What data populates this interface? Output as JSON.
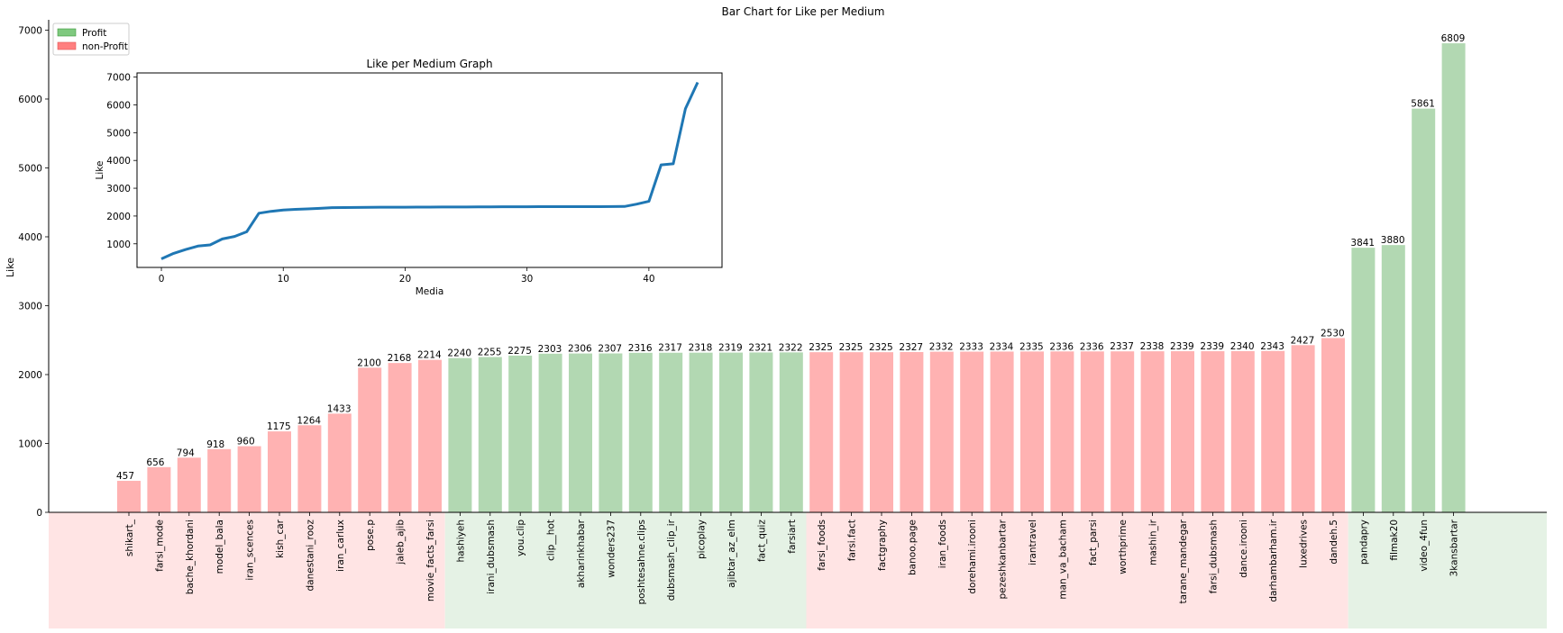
{
  "chart_data": [
    {
      "type": "bar",
      "title": "Bar Chart for Like per Medium",
      "xlabel": "",
      "ylabel": "Like",
      "ylim": [
        0,
        7150
      ],
      "yticks": [
        0,
        1000,
        2000,
        3000,
        4000,
        5000,
        6000,
        7000
      ],
      "legend": {
        "placement": "top-left",
        "entries": [
          {
            "label": "Profit",
            "color": "#7fc97f"
          },
          {
            "label": "non-Profit",
            "color": "#ff7f7f"
          }
        ]
      },
      "colors": {
        "profit_bar": "#b2d8b2",
        "nonprofit_bar": "#ffb2b2",
        "profit_band": "#e5f2e5",
        "nonprofit_band": "#ffe4e4"
      },
      "categories": [
        "shikart_",
        "farsi_mode",
        "bache_khordani",
        "model_bala",
        "iran_scences",
        "kish_car",
        "danestani_rooz",
        "iran_carlux",
        "pose.p",
        "jaleb_ajib",
        "movie_facts_farsi",
        "hashiyeh",
        "irani_dubsmash",
        "you.clip",
        "clip__hot",
        "akharinkhabar",
        "wonders237",
        "poshtesahne.clips",
        "dubsmash_clip_ir",
        "picoplay",
        "ajibtar_az_elm",
        "fact_quiz",
        "farsiart",
        "farsi_foods",
        "farsi.fact",
        "factgraphy",
        "banoo.page",
        "iran_foods",
        "dorehami.irooni",
        "pezeshkanbartar",
        "irantravel",
        "man_va_bacham",
        "fact_parsi",
        "worthprime",
        "mashin_ir",
        "tarane_mandegar",
        "farsi_dubsmash",
        "dance.irooni",
        "darhambarham.ir",
        "luxedrives",
        "dandeh.5",
        "pandapry",
        "filmak20",
        "video_4fun",
        "3kansbartar"
      ],
      "values": [
        457,
        656,
        794,
        918,
        960,
        1175,
        1264,
        1433,
        2100,
        2168,
        2214,
        2240,
        2255,
        2275,
        2303,
        2306,
        2307,
        2316,
        2317,
        2318,
        2319,
        2321,
        2322,
        2325,
        2325,
        2325,
        2327,
        2332,
        2333,
        2334,
        2335,
        2336,
        2336,
        2337,
        2338,
        2339,
        2339,
        2340,
        2343,
        2427,
        2530,
        3841,
        3880,
        5861,
        6809
      ],
      "profit": [
        false,
        false,
        false,
        false,
        false,
        false,
        false,
        false,
        false,
        false,
        false,
        true,
        true,
        true,
        true,
        true,
        true,
        true,
        true,
        true,
        true,
        true,
        true,
        false,
        false,
        false,
        false,
        false,
        false,
        false,
        false,
        false,
        false,
        false,
        false,
        false,
        false,
        false,
        false,
        false,
        false,
        true,
        true,
        true,
        true
      ],
      "data_labels": [
        "457",
        "656",
        "794",
        "918",
        "960",
        "1175",
        "1264",
        "1433",
        "2100",
        "2168",
        "2214",
        "2240",
        "2255",
        "2275",
        "2303",
        "2306",
        "2307",
        "2316",
        "2317",
        "2318",
        "2319",
        "2321",
        "2322",
        "2325",
        "2325",
        "2325",
        "2327",
        "2332",
        "2333",
        "2334",
        "2335",
        "2336",
        "2336",
        "2337",
        "2338",
        "2339",
        "2339",
        "2340",
        "2343",
        "2427",
        "2530",
        "3841",
        "3880",
        "5861",
        "6809"
      ]
    },
    {
      "type": "line",
      "title": "Like per Medium Graph",
      "xlabel": "Media",
      "ylabel": "Like",
      "xlim": [
        -2,
        46
      ],
      "ylim": [
        150,
        7150
      ],
      "xticks": [
        0,
        10,
        20,
        30,
        40
      ],
      "yticks": [
        1000,
        2000,
        3000,
        4000,
        5000,
        6000,
        7000
      ],
      "line_color": "#1f77b4",
      "x": [
        0,
        1,
        2,
        3,
        4,
        5,
        6,
        7,
        8,
        9,
        10,
        11,
        12,
        13,
        14,
        15,
        16,
        17,
        18,
        19,
        20,
        21,
        22,
        23,
        24,
        25,
        26,
        27,
        28,
        29,
        30,
        31,
        32,
        33,
        34,
        35,
        36,
        37,
        38,
        39,
        40,
        41,
        42,
        43,
        44
      ],
      "y": [
        457,
        656,
        794,
        918,
        960,
        1175,
        1264,
        1433,
        2100,
        2168,
        2214,
        2240,
        2255,
        2275,
        2303,
        2306,
        2307,
        2316,
        2317,
        2318,
        2319,
        2321,
        2322,
        2325,
        2325,
        2325,
        2327,
        2332,
        2333,
        2334,
        2335,
        2336,
        2336,
        2337,
        2338,
        2339,
        2339,
        2340,
        2343,
        2427,
        2530,
        3841,
        3880,
        5861,
        6809
      ]
    }
  ]
}
